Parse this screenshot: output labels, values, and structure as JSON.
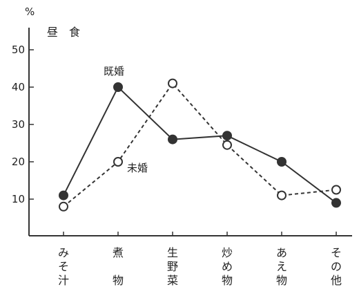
{
  "chart_data": {
    "type": "line",
    "title": "昼　食",
    "ylabel": "%",
    "xlabel": "",
    "ylim": [
      0,
      55
    ],
    "yticks": [
      10,
      20,
      30,
      40,
      50
    ],
    "grid": false,
    "categories": [
      "みそ汁",
      "煮物",
      "生野菜",
      "炒め物",
      "あえ物",
      "その他"
    ],
    "series": [
      {
        "name": "既婚",
        "values": [
          11,
          40,
          26,
          27,
          20,
          9
        ],
        "line": "solid",
        "marker": "filled",
        "color": "#333333"
      },
      {
        "name": "未婚",
        "values": [
          8,
          20,
          41,
          24.5,
          11,
          12.5
        ],
        "line": "dashed",
        "marker": "open",
        "color": "#333333"
      }
    ]
  }
}
